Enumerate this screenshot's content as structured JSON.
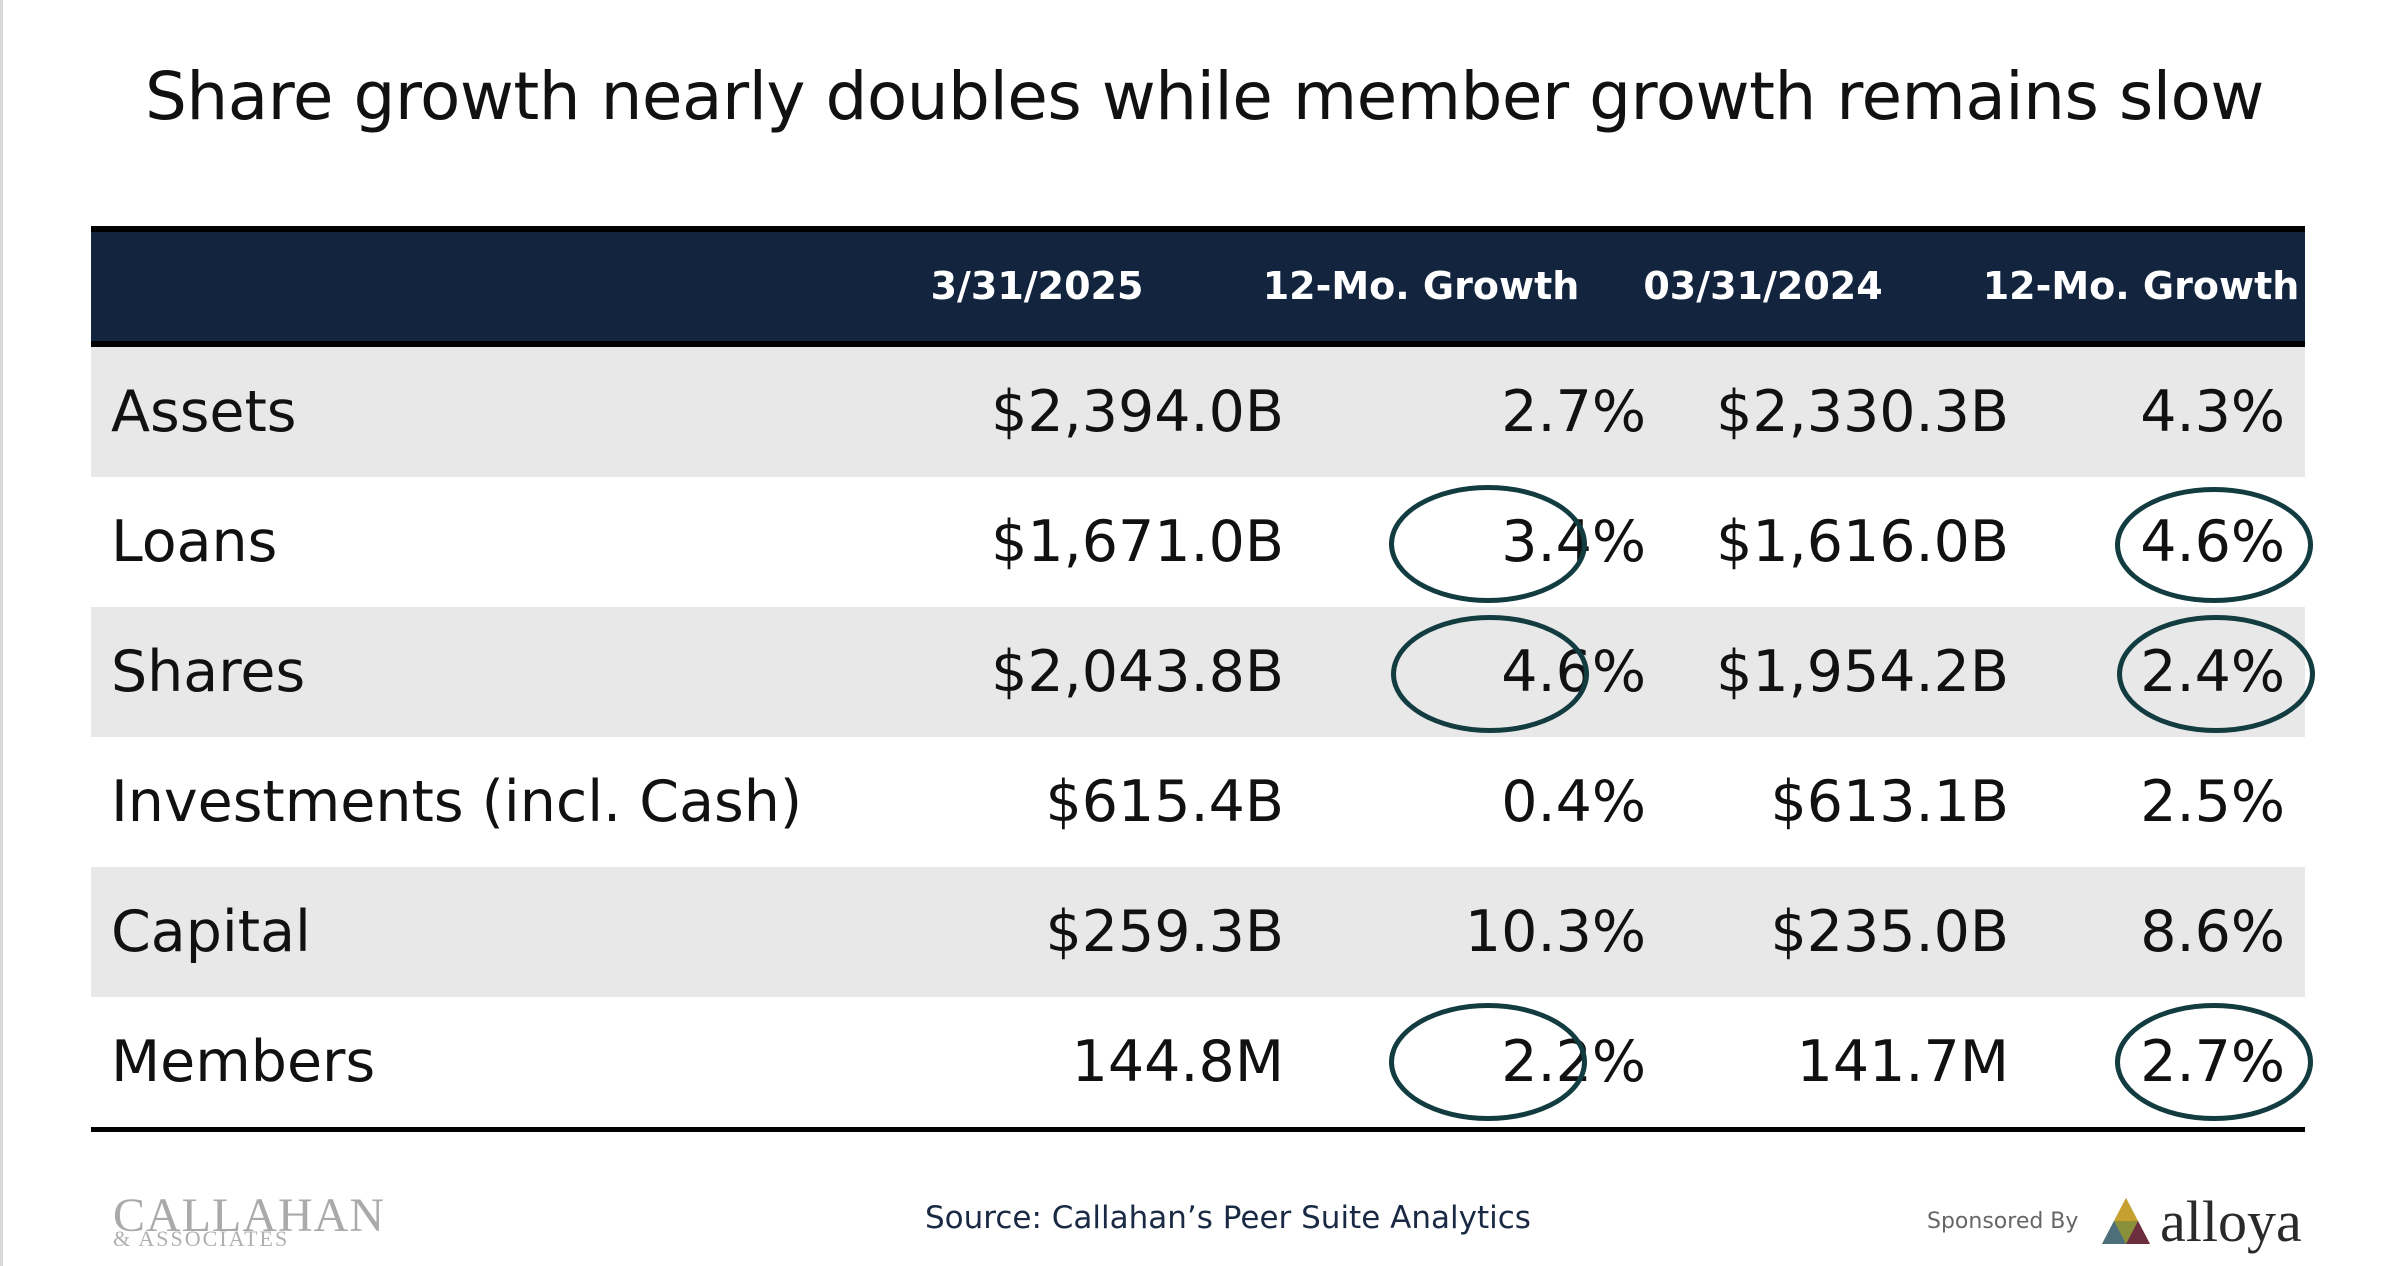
{
  "title": "Share growth nearly doubles while member growth remains slow",
  "table": {
    "headers": [
      "",
      "3/31/2025",
      "12-Mo. Growth",
      "03/31/2024",
      "12-Mo. Growth"
    ],
    "rows": [
      {
        "label": "Assets",
        "v2025": "$2,394.0B",
        "g2025": "2.7%",
        "v2024": "$2,330.3B",
        "g2024": "4.3%"
      },
      {
        "label": "Loans",
        "v2025": "$1,671.0B",
        "g2025": "3.4%",
        "v2024": "$1,616.0B",
        "g2024": "4.6%"
      },
      {
        "label": "Shares",
        "v2025": "$2,043.8B",
        "g2025": "4.6%",
        "v2024": "$1,954.2B",
        "g2024": "2.4%"
      },
      {
        "label": "Investments (incl. Cash)",
        "v2025": "$615.4B",
        "g2025": "0.4%",
        "v2024": "$613.1B",
        "g2024": "2.5%"
      },
      {
        "label": "Capital",
        "v2025": "$259.3B",
        "g2025": "10.3%",
        "v2024": "$235.0B",
        "g2024": "8.6%"
      },
      {
        "label": "Members",
        "v2025": "144.8M",
        "g2025": "2.2%",
        "v2024": "141.7M",
        "g2024": "2.7%"
      }
    ],
    "highlighted_rows": [
      "Loans",
      "Shares",
      "Members"
    ]
  },
  "footer": {
    "source": "Source: Callahan’s Peer Suite Analytics",
    "callahan_logo": "CALLAHAN",
    "callahan_sub": "& ASSOCIATES",
    "sponsored_by": "Sponsored By",
    "alloya_logo": "alloya"
  },
  "colors": {
    "header_bg": "#13243f",
    "row_shade": "#e8e8e8",
    "circle": "#123c40"
  }
}
